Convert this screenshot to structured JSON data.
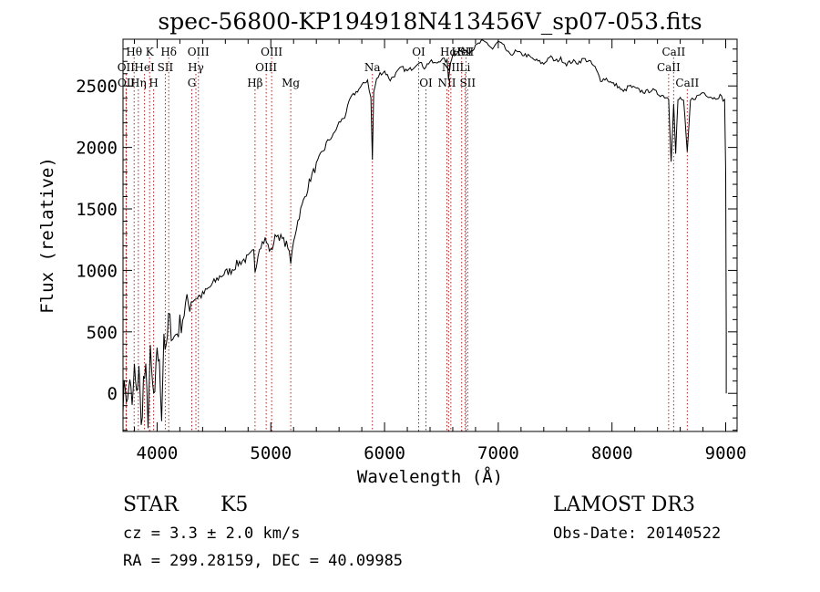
{
  "chart_data": {
    "type": "line",
    "title": "spec-56800-KP194918N413456V_sp07-053.fits",
    "xlabel": "Wavelength (Å)",
    "ylabel": "Flux (relative)",
    "xlim": [
      3700,
      9100
    ],
    "ylim": [
      -310,
      2880
    ],
    "xticks": [
      4000,
      5000,
      6000,
      7000,
      8000,
      9000
    ],
    "yticks": [
      0,
      500,
      1000,
      1500,
      2000,
      2500
    ],
    "xtick_labels": [
      "4000",
      "5000",
      "6000",
      "7000",
      "8000",
      "9000"
    ],
    "ytick_labels": [
      "0",
      "500",
      "1000",
      "1500",
      "2000",
      "2500"
    ],
    "series": [
      {
        "name": "flux",
        "x": [
          3700,
          3720,
          3740,
          3760,
          3780,
          3800,
          3820,
          3840,
          3860,
          3880,
          3900,
          3920,
          3940,
          3960,
          3980,
          4000,
          4020,
          4040,
          4060,
          4080,
          4100,
          4150,
          4200,
          4250,
          4300,
          4350,
          4400,
          4450,
          4500,
          4550,
          4600,
          4650,
          4700,
          4750,
          4800,
          4850,
          4861,
          4900,
          4950,
          5000,
          5050,
          5100,
          5150,
          5175,
          5200,
          5250,
          5300,
          5350,
          5400,
          5450,
          5500,
          5550,
          5600,
          5650,
          5700,
          5750,
          5800,
          5850,
          5880,
          5893,
          5905,
          5930,
          5960,
          6000,
          6050,
          6100,
          6150,
          6200,
          6250,
          6300,
          6350,
          6400,
          6450,
          6500,
          6550,
          6563,
          6580,
          6600,
          6650,
          6700,
          6750,
          6800,
          6850,
          6900,
          6950,
          7000,
          7050,
          7100,
          7150,
          7200,
          7250,
          7300,
          7350,
          7400,
          7450,
          7500,
          7550,
          7600,
          7650,
          7700,
          7750,
          7800,
          7850,
          7900,
          7950,
          8000,
          8050,
          8100,
          8150,
          8200,
          8250,
          8300,
          8350,
          8400,
          8450,
          8498,
          8520,
          8542,
          8560,
          8580,
          8600,
          8630,
          8662,
          8690,
          8720,
          8760,
          8800,
          8850,
          8900,
          8950,
          8990,
          9000,
          9005
        ],
        "y": [
          -50,
          80,
          -100,
          150,
          -150,
          200,
          -50,
          250,
          -300,
          100,
          150,
          -200,
          300,
          50,
          -80,
          400,
          200,
          -150,
          500,
          300,
          600,
          450,
          550,
          700,
          750,
          780,
          800,
          850,
          900,
          950,
          980,
          1000,
          1050,
          1080,
          1100,
          1150,
          1000,
          1200,
          1250,
          1150,
          1300,
          1250,
          1200,
          1050,
          1250,
          1450,
          1600,
          1750,
          1850,
          1950,
          2050,
          2100,
          2200,
          2250,
          2400,
          2450,
          2500,
          2550,
          2400,
          1900,
          2450,
          2550,
          2600,
          2620,
          2550,
          2600,
          2650,
          2620,
          2650,
          2700,
          2650,
          2700,
          2680,
          2720,
          2700,
          2550,
          2700,
          2750,
          2780,
          2800,
          2780,
          2820,
          2860,
          2850,
          2800,
          2860,
          2820,
          2750,
          2780,
          2760,
          2750,
          2720,
          2700,
          2680,
          2740,
          2700,
          2720,
          2680,
          2700,
          2690,
          2720,
          2700,
          2650,
          2550,
          2560,
          2520,
          2500,
          2450,
          2500,
          2480,
          2460,
          2450,
          2470,
          2440,
          2420,
          2400,
          1900,
          2350,
          1950,
          2380,
          2400,
          2380,
          1950,
          2380,
          2400,
          2420,
          2450,
          2420,
          2400,
          2420,
          2380,
          1800,
          500
        ]
      }
    ],
    "lines": [
      {
        "wave": 3798,
        "labels": [
          "Hθ"
        ],
        "level": 0
      },
      {
        "wave": 3727,
        "labels": [
          "OII"
        ],
        "level": 1
      },
      {
        "wave": 3729,
        "labels": [
          "OII"
        ],
        "level": 2
      },
      {
        "wave": 3835,
        "labels": [
          "Hη"
        ],
        "level": 2
      },
      {
        "wave": 3889,
        "labels": [
          "HeI"
        ],
        "level": 1
      },
      {
        "wave": 3934,
        "labels": [
          "K"
        ],
        "level": 0
      },
      {
        "wave": 3969,
        "labels": [
          "H"
        ],
        "level": 2
      },
      {
        "wave": 4072,
        "labels": [
          "SII"
        ],
        "level": 1
      },
      {
        "wave": 4102,
        "labels": [
          "Hδ"
        ],
        "level": 0
      },
      {
        "wave": 4305,
        "labels": [
          "G"
        ],
        "level": 2
      },
      {
        "wave": 4341,
        "labels": [
          "Hγ"
        ],
        "level": 1
      },
      {
        "wave": 4363,
        "labels": [
          "OIII"
        ],
        "level": 0
      },
      {
        "wave": 4861,
        "labels": [
          "Hβ"
        ],
        "level": 2
      },
      {
        "wave": 4959,
        "labels": [
          "OIII"
        ],
        "level": 1
      },
      {
        "wave": 5007,
        "labels": [
          "OIII"
        ],
        "level": 0
      },
      {
        "wave": 5175,
        "labels": [
          "Mg"
        ],
        "level": 2
      },
      {
        "wave": 5893,
        "labels": [
          "Na"
        ],
        "level": 1
      },
      {
        "wave": 6300,
        "labels": [
          "OI"
        ],
        "level": 0
      },
      {
        "wave": 6364,
        "labels": [
          "OI"
        ],
        "level": 2
      },
      {
        "wave": 6548,
        "labels": [
          "NII"
        ],
        "level": 2
      },
      {
        "wave": 6563,
        "labels": [
          "Hα"
        ],
        "level": 0
      },
      {
        "wave": 6583,
        "labels": [
          "NII"
        ],
        "level": 1
      },
      {
        "wave": 6678,
        "labels": [
          "HeI"
        ],
        "level": 0
      },
      {
        "wave": 6708,
        "labels": [
          "Li"
        ],
        "level": 1
      },
      {
        "wave": 6716,
        "labels": [
          "SII"
        ],
        "level": 0
      },
      {
        "wave": 6731,
        "labels": [
          "SII"
        ],
        "level": 2
      },
      {
        "wave": 8498,
        "labels": [
          "CaII"
        ],
        "level": 1
      },
      {
        "wave": 8542,
        "labels": [
          "CaII"
        ],
        "level": 0
      },
      {
        "wave": 8662,
        "labels": [
          "CaII"
        ],
        "level": 2
      }
    ]
  },
  "info": {
    "class": "STAR",
    "subclass": "K5",
    "survey": "LAMOST DR3",
    "cz": "cz = 3.3 ± 2.0 km/s",
    "obsdate": "Obs-Date: 20140522",
    "radec": "RA = 299.28159, DEC =  40.09985"
  }
}
